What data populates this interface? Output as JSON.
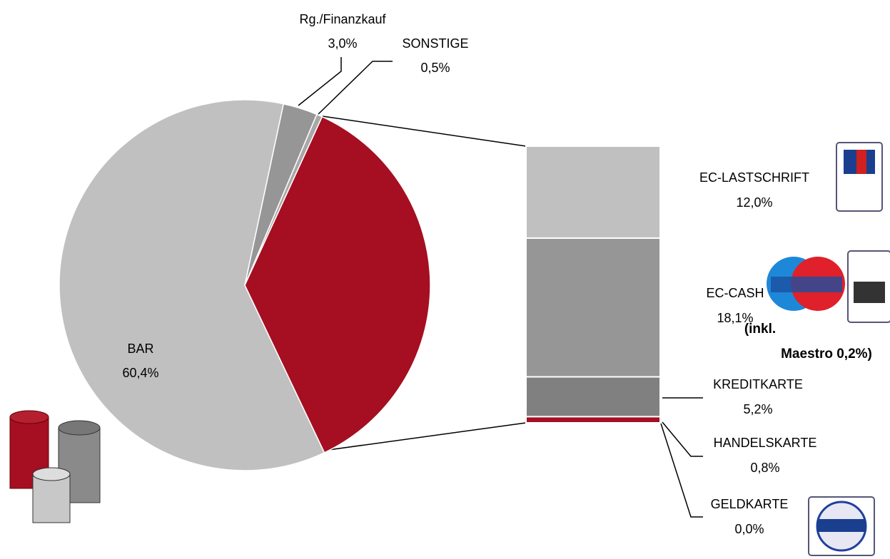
{
  "chart_data": {
    "type": "pie",
    "categories": [
      "BAR",
      "Rg./Finanzkauf",
      "SONSTIGE",
      null
    ],
    "values": [
      60.4,
      3.0,
      0.5,
      36.1
    ],
    "value_labels": [
      "60,4%",
      "3,0%",
      "0,5%",
      null
    ],
    "colors": [
      "#c0c0c0",
      "#969696",
      "#a8a8a8",
      "#a50f21"
    ],
    "breakdown": {
      "categories": [
        "EC-LASTSCHRIFT",
        "EC-CASH",
        "KREDITKARTE",
        "HANDELSKARTE",
        "GELDKARTE"
      ],
      "values": [
        12.0,
        18.1,
        5.2,
        0.8,
        0.0
      ],
      "value_labels": [
        "12,0%",
        "18,1%",
        "5,2%",
        "0,8%",
        "0,0%"
      ],
      "colors": [
        "#c0c0c0",
        "#969696",
        "#808080",
        "#a50f21",
        "#ffffff"
      ]
    },
    "annotation": [
      "(inkl.",
      "Maestro 0,2%)"
    ]
  }
}
